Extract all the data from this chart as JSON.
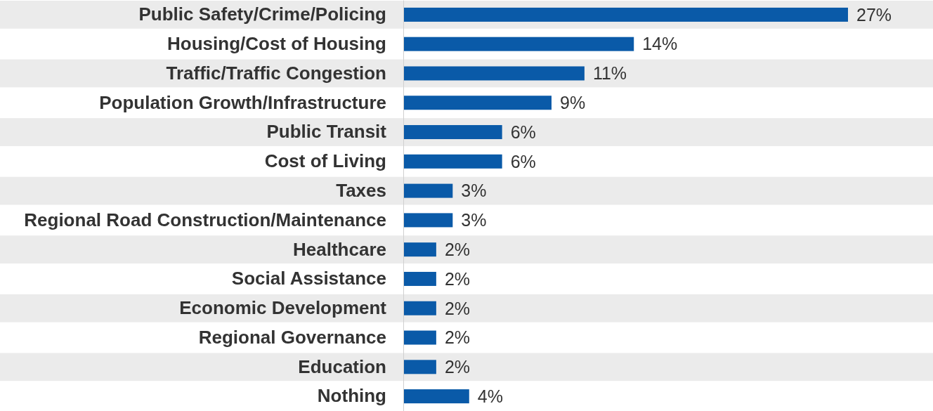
{
  "chart_data": {
    "type": "bar",
    "orientation": "horizontal",
    "categories": [
      "Public Safety/Crime/Policing",
      "Housing/Cost of Housing",
      "Traffic/Traffic Congestion",
      "Population Growth/Infrastructure",
      "Public Transit",
      "Cost of Living",
      "Taxes",
      "Regional Road Construction/Maintenance",
      "Healthcare",
      "Social Assistance",
      "Economic Development",
      "Regional Governance",
      "Education",
      "Nothing"
    ],
    "values": [
      27,
      14,
      11,
      9,
      6,
      6,
      3,
      3,
      2,
      2,
      2,
      2,
      2,
      4
    ],
    "value_labels": [
      "27%",
      "14%",
      "11%",
      "9%",
      "6%",
      "6%",
      "3%",
      "3%",
      "2%",
      "2%",
      "2%",
      "2%",
      "2%",
      "4%"
    ],
    "color": "#0a5aa8",
    "tick_labels": "y"
  }
}
